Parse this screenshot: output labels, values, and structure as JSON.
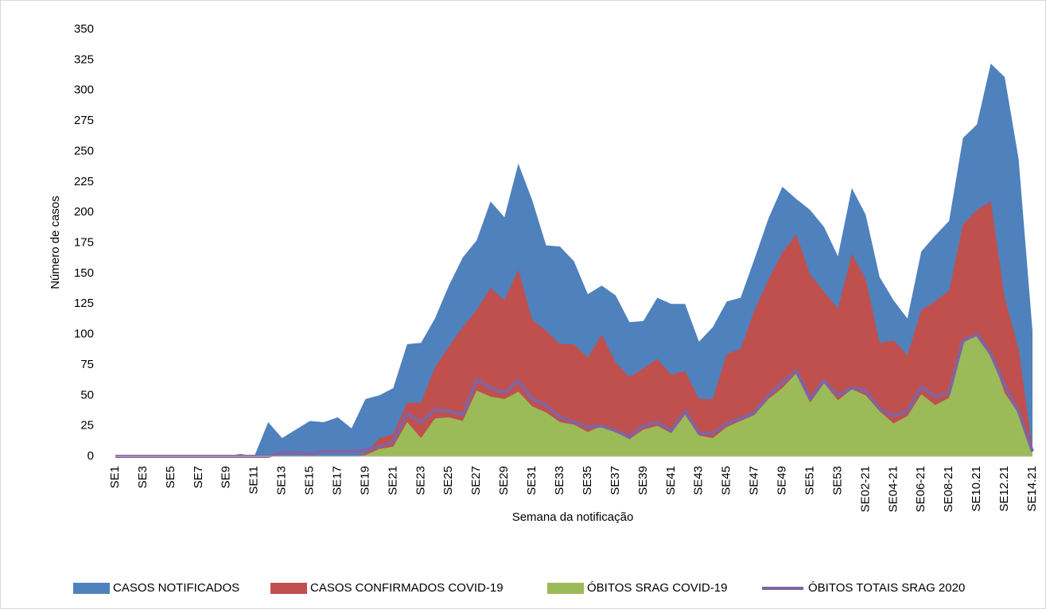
{
  "chart_data": {
    "type": "area",
    "y_label": "Número de casos",
    "x_label": "Semana da notificação",
    "categories": [
      "SE1",
      null,
      "SE3",
      null,
      "SE5",
      null,
      "SE7",
      null,
      "SE9",
      null,
      "SE11",
      null,
      "SE13",
      null,
      "SE15",
      null,
      "SE17",
      null,
      "SE19",
      null,
      "SE21",
      null,
      "SE23",
      null,
      "SE25",
      null,
      "SE27",
      null,
      "SE29",
      null,
      "SE31",
      null,
      "SE33",
      null,
      "SE35",
      null,
      "SE37",
      null,
      "SE39",
      null,
      "SE41",
      null,
      "SE43",
      null,
      "SE45",
      null,
      "SE47",
      null,
      "SE49",
      null,
      "SE51",
      null,
      "SE53",
      null,
      "SE02-21",
      null,
      "SE04-21",
      null,
      "SE06-21",
      null,
      "SE08-21",
      null,
      "SE10.21",
      null,
      "SE12.21",
      null,
      "SE14.21"
    ],
    "series": [
      {
        "name": "CASOS NOTIFICADOS",
        "color": "#4f81bd",
        "type": "area",
        "values": [
          0,
          0,
          0,
          0,
          0,
          0,
          0,
          0,
          0,
          2,
          0,
          28,
          15,
          22,
          29,
          28,
          32,
          23,
          47,
          50,
          56,
          92,
          93,
          113,
          140,
          163,
          177,
          209,
          196,
          240,
          210,
          173,
          172,
          160,
          133,
          140,
          132,
          110,
          111,
          130,
          125,
          125,
          94,
          106,
          127,
          130,
          162,
          195,
          221,
          211,
          202,
          188,
          164,
          220,
          198,
          147,
          128,
          113,
          168,
          181,
          193,
          261,
          272,
          322,
          311,
          244,
          103
        ]
      },
      {
        "name": "CASOS CONFIRMADOS COVID-19",
        "color": "#c0504d",
        "type": "area",
        "values": [
          0,
          0,
          0,
          0,
          0,
          0,
          0,
          0,
          0,
          0,
          0,
          0,
          0,
          0,
          0,
          0,
          0,
          0,
          2,
          15,
          18,
          44,
          44,
          73,
          90,
          106,
          120,
          138,
          128,
          153,
          112,
          103,
          92,
          92,
          81,
          100,
          77,
          65,
          72,
          80,
          67,
          70,
          47,
          47,
          84,
          88,
          120,
          145,
          167,
          182,
          149,
          135,
          121,
          166,
          145,
          93,
          95,
          83,
          120,
          127,
          136,
          190,
          202,
          209,
          130,
          88,
          5
        ]
      },
      {
        "name": "ÓBITOS SRAG COVID-19",
        "color": "#9bbb59",
        "type": "area",
        "values": [
          0,
          0,
          0,
          0,
          0,
          0,
          0,
          0,
          0,
          0,
          0,
          0,
          0,
          0,
          0,
          0,
          0,
          0,
          1,
          6,
          8,
          28,
          15,
          31,
          32,
          29,
          54,
          49,
          47,
          53,
          41,
          36,
          28,
          26,
          20,
          25,
          20,
          14,
          22,
          25,
          19,
          34,
          17,
          15,
          24,
          29,
          34,
          47,
          56,
          68,
          44,
          60,
          46,
          55,
          50,
          37,
          27,
          33,
          51,
          42,
          48,
          93,
          100,
          85,
          52,
          35,
          3
        ]
      },
      {
        "name": "ÓBITOS TOTAIS SRAG 2020",
        "color": "#8064a2",
        "type": "line",
        "values": [
          0,
          0,
          0,
          0,
          0,
          0,
          0,
          0,
          0,
          0,
          0,
          0,
          3,
          3,
          2,
          4,
          4,
          4,
          5,
          8,
          12,
          35,
          28,
          38,
          37,
          34,
          63,
          56,
          52,
          62,
          47,
          42,
          32,
          28,
          24,
          25,
          21,
          16,
          25,
          28,
          21,
          37,
          19,
          19,
          27,
          31,
          36,
          50,
          60,
          70,
          47,
          62,
          50,
          56,
          54,
          39,
          33,
          37,
          57,
          49,
          52,
          95,
          100,
          84,
          58,
          37,
          4
        ]
      }
    ],
    "ylim": [
      0,
      350
    ],
    "yticks": [
      0,
      25,
      50,
      75,
      100,
      125,
      150,
      175,
      200,
      225,
      250,
      275,
      300,
      325,
      350
    ],
    "grid": false,
    "legend": "bottom"
  }
}
